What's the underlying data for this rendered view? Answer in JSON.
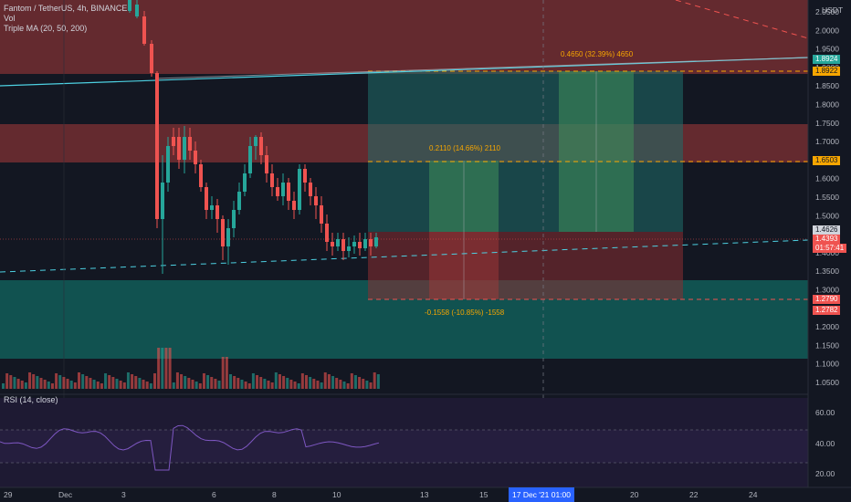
{
  "legend": {
    "title": "Fantom / TetherUS, 4h, BINANCE",
    "vol": "Vol",
    "ma": "Triple MA (20, 50, 200)",
    "rsi": "RSI (14, close)"
  },
  "price_axis": {
    "currency": "USDT",
    "ticks": [
      "2.0500",
      "2.0000",
      "1.9500",
      "1.9000",
      "1.8500",
      "1.8000",
      "1.7500",
      "1.7000",
      "1.6500",
      "1.6000",
      "1.5500",
      "1.5000",
      "1.4500",
      "1.4000",
      "1.3500",
      "1.3000",
      "1.2500",
      "1.2000",
      "1.1500",
      "1.1000",
      "1.0500"
    ],
    "rsi_ticks": [
      "60.00",
      "40.00",
      "20.00"
    ]
  },
  "price_tags": {
    "t1": "1.8924",
    "t2": "1.8922",
    "t3": "1.6503",
    "t4": "1.4626",
    "t5": "1.4393",
    "t6": "01:57:41",
    "t7": "1.2790",
    "t8": "1.2782"
  },
  "annotations": {
    "long_top": "0.4650 (32.39%) 4650",
    "long_mid": "0.2110 (14.66%) 2110",
    "short": "-0.1558 (-10.85%) -1558"
  },
  "time_axis": {
    "labels": [
      "29",
      "Dec",
      "3",
      "6",
      "8",
      "10",
      "13",
      "15",
      "20",
      "22",
      "24"
    ],
    "current": "17 Dec '21  01:00"
  },
  "colors": {
    "up": "#26a69a",
    "down": "#ef5350",
    "accent": "#f7a600",
    "line": "#4dd0e1"
  }
}
